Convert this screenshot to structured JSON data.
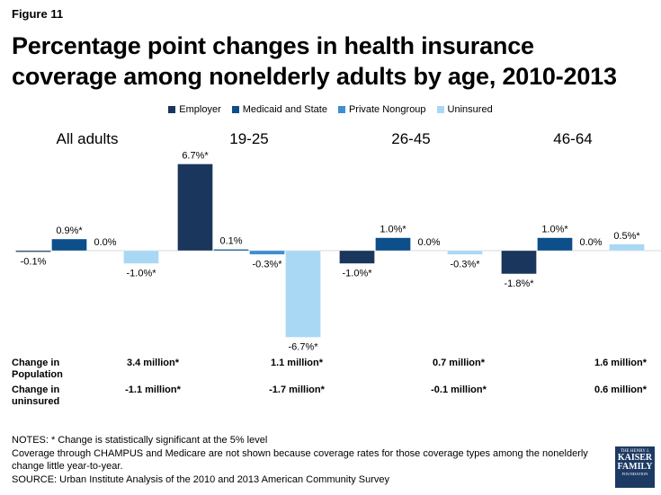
{
  "figure_label": "Figure 11",
  "title": "Percentage point changes in health insurance coverage among nonelderly adults by age, 2010-2013",
  "chart_data": {
    "type": "bar",
    "categories": [
      "All adults",
      "19-25",
      "26-45",
      "46-64"
    ],
    "series": [
      {
        "name": "Employer",
        "color": "#1b365d",
        "values": [
          -0.1,
          6.7,
          -1.0,
          -1.8
        ],
        "labels": [
          "-0.1%",
          "6.7%*",
          "-1.0%*",
          "-1.8%*"
        ]
      },
      {
        "name": "Medicaid and State",
        "color": "#0c4f8b",
        "values": [
          0.9,
          0.1,
          1.0,
          1.0
        ],
        "labels": [
          "0.9%*",
          "0.1%",
          "1.0%*",
          "1.0%*"
        ]
      },
      {
        "name": "Private Nongroup",
        "color": "#3e8ed0",
        "values": [
          0.0,
          -0.3,
          0.0,
          0.0
        ],
        "labels": [
          "0.0%",
          "-0.3%*",
          "0.0%",
          "0.0%"
        ]
      },
      {
        "name": "Uninsured",
        "color": "#a9d8f4",
        "values": [
          -1.0,
          -6.7,
          -0.3,
          0.5
        ],
        "labels": [
          "-1.0%*",
          "-6.7%*",
          "-0.3%*",
          "0.5%*"
        ]
      }
    ],
    "legend_position": "top"
  },
  "stats": {
    "population_header": "Change in Population",
    "population_values": [
      "3.4 million*",
      "1.1 million*",
      "0.7 million*",
      "1.6 million*"
    ],
    "uninsured_header": "Change in uninsured",
    "uninsured_values": [
      "-1.1 million*",
      "-1.7 million*",
      "-0.1 million*",
      "0.6 million*"
    ]
  },
  "notes": {
    "line1": "NOTES: * Change is statistically significant at the 5% level",
    "line2": "Coverage through CHAMPUS and Medicare are not shown because coverage rates for those coverage types among the nonelderly change little year-to-year.",
    "line3": "SOURCE: Urban Institute Analysis of the 2010 and 2013 American Community Survey"
  },
  "logo": {
    "line1": "THE HENRY J.",
    "line2": "KAISER",
    "line3": "FAMILY",
    "line4": "FOUNDATION"
  }
}
